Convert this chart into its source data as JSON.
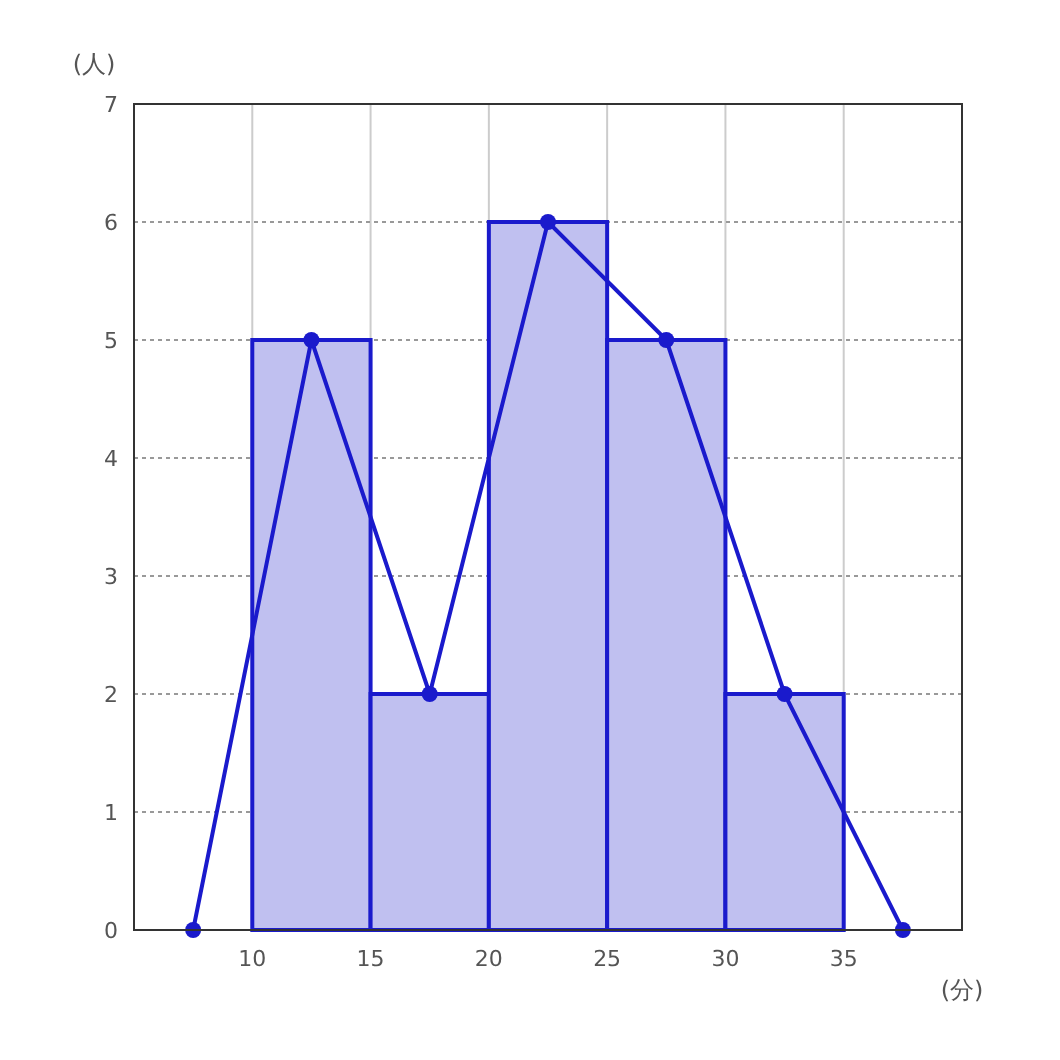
{
  "chart_data": {
    "type": "histogram",
    "ylabel": "(人)",
    "xlabel": "(分)",
    "xlim": [
      5,
      40
    ],
    "xticks": [
      10,
      15,
      20,
      25,
      30,
      35
    ],
    "ylim": [
      0,
      7
    ],
    "yticks": [
      0,
      1,
      2,
      3,
      4,
      5,
      6,
      7
    ],
    "grid": true,
    "series": [
      {
        "bins": [
          10,
          15,
          20,
          25,
          30,
          35
        ],
        "values": [
          5,
          2,
          6,
          5,
          2
        ],
        "color": "#c0c0f0"
      },
      {
        "type": "line",
        "x": [
          7.5,
          12.5,
          17.5,
          22.5,
          27.5,
          32.5,
          37.5
        ],
        "values": [
          0,
          5,
          2,
          6,
          5,
          2,
          0
        ],
        "color": "#1a1acc",
        "marker": "circle"
      }
    ]
  }
}
